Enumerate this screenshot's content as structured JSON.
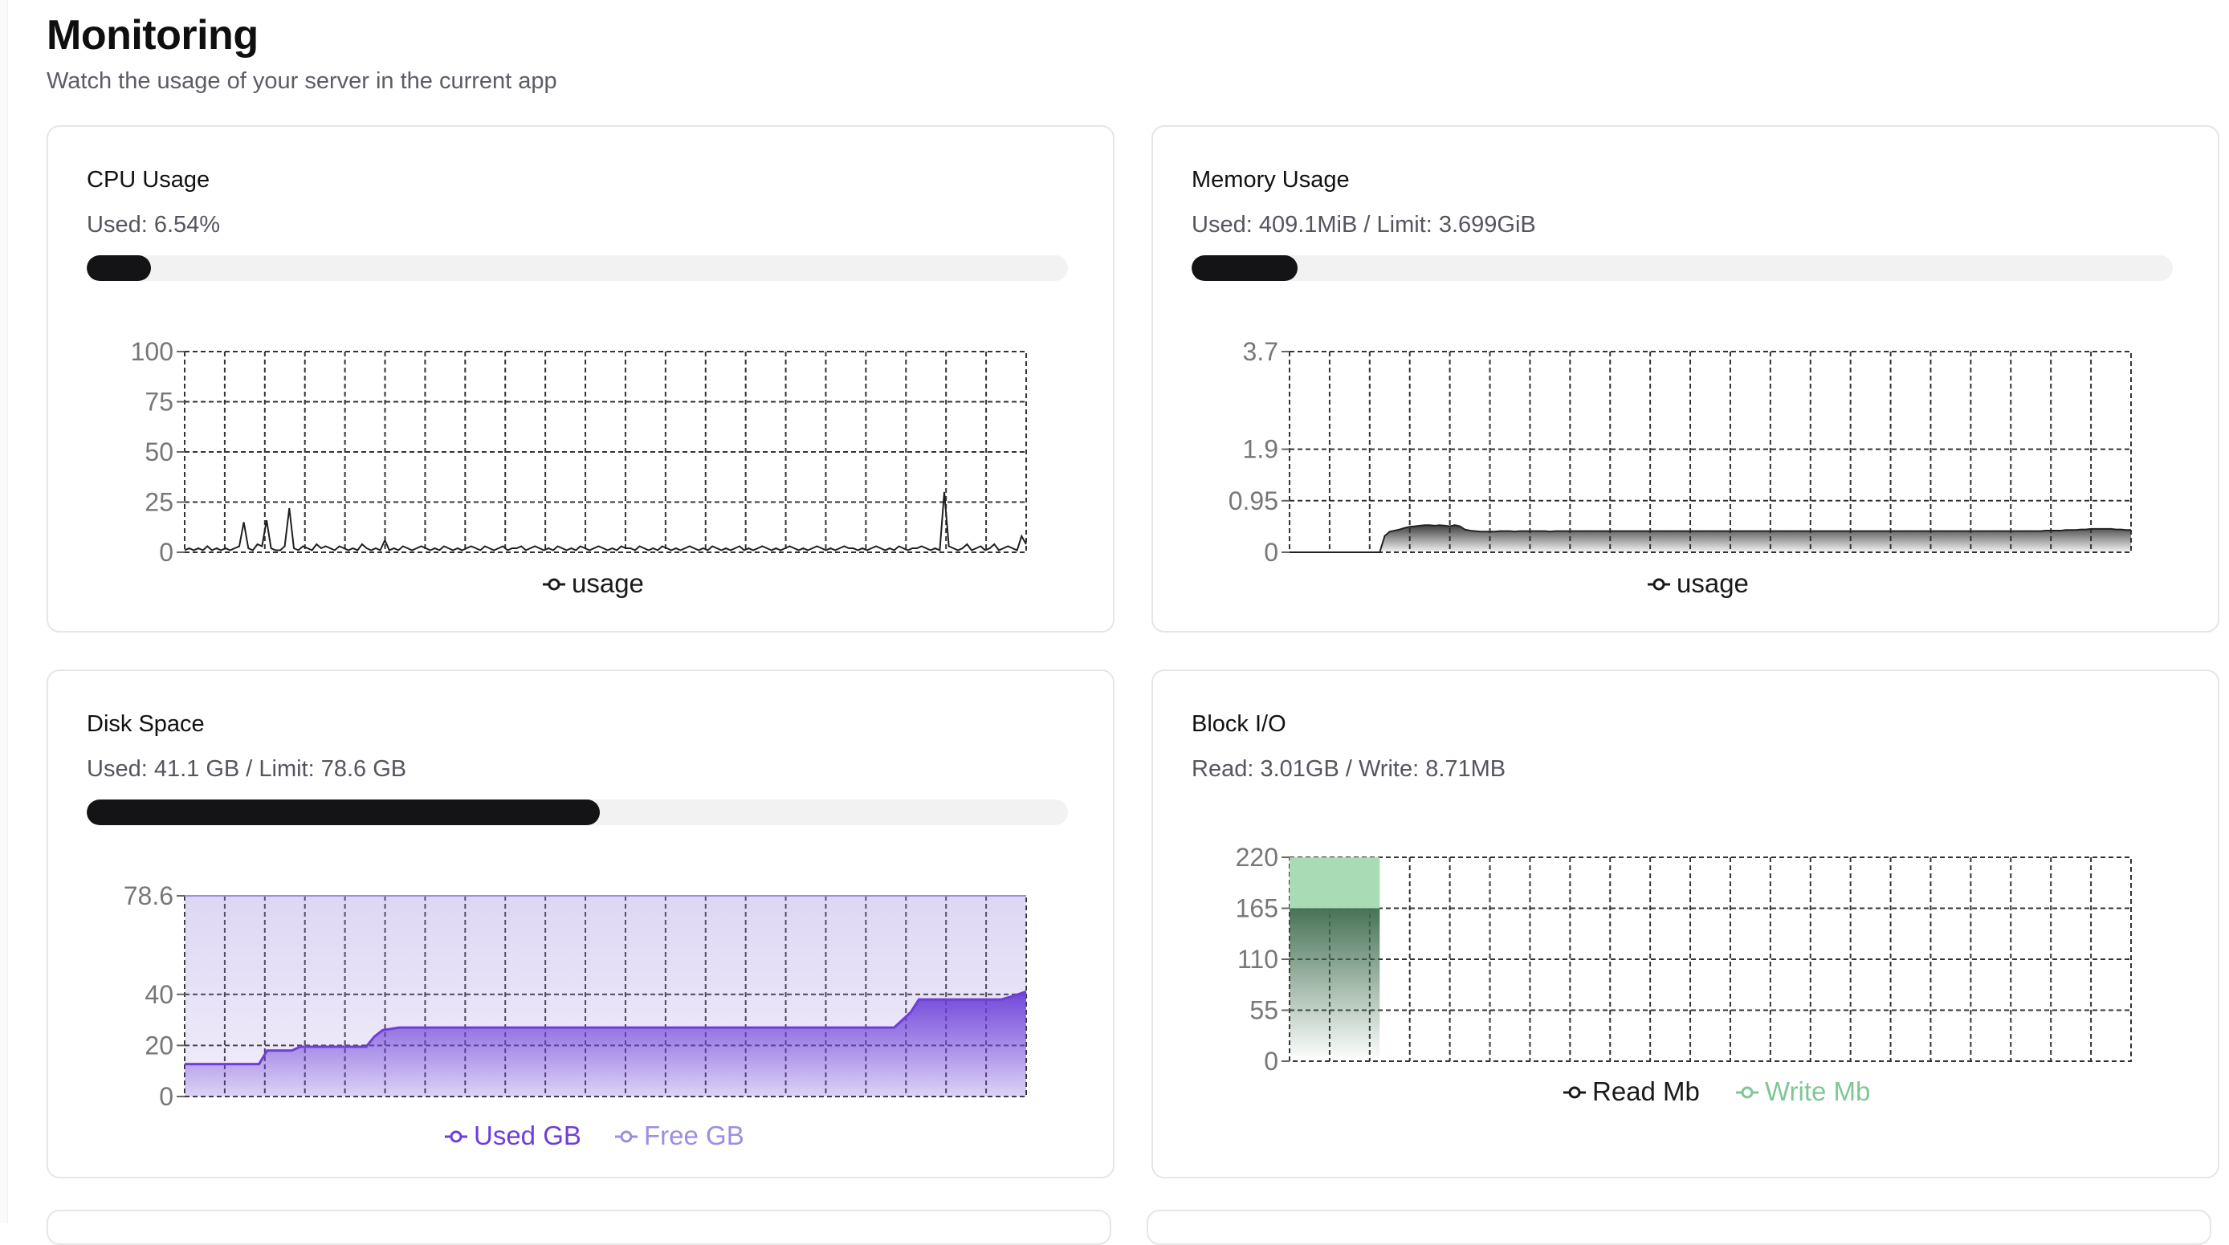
{
  "header": {
    "title": "Monitoring",
    "subtitle": "Watch the usage of your server in the current app"
  },
  "cards": {
    "cpu": {
      "title": "CPU Usage",
      "stat": "Used: 6.54%",
      "progress": 0.0654
    },
    "memory": {
      "title": "Memory Usage",
      "stat": "Used: 409.1MiB / Limit: 3.699GiB",
      "progress": 0.108
    },
    "disk": {
      "title": "Disk Space",
      "stat": "Used: 41.1 GB / Limit: 78.6 GB",
      "progress": 0.523
    },
    "blockio": {
      "title": "Block I/O",
      "stat": "Read: 3.01GB / Write: 8.71MB"
    }
  },
  "colors": {
    "line_dark": "#1f1f1f",
    "used_purple": "#6d3fd8",
    "free_purple": "#a08ce0",
    "write_green": "#7ec794",
    "read_dark": "#3a3a3a"
  },
  "chart_data": [
    {
      "id": "cpu",
      "type": "line",
      "ylim": [
        0,
        100
      ],
      "yticks": [
        "100",
        "75",
        "50",
        "25",
        "0"
      ],
      "ytick_values": [
        100,
        75,
        50,
        25,
        0
      ],
      "series": [
        {
          "name": "usage",
          "values": [
            1,
            2,
            1,
            2,
            1,
            3,
            1,
            2,
            1,
            2,
            1,
            2,
            3,
            15,
            2,
            1,
            4,
            3,
            16,
            2,
            1,
            1,
            3,
            22,
            2,
            1,
            3,
            2,
            1,
            4,
            2,
            3,
            2,
            1,
            3,
            2,
            1,
            2,
            1,
            4,
            2,
            1,
            2,
            1,
            6,
            1,
            2,
            1,
            3,
            2,
            1,
            2,
            3,
            2,
            1,
            2,
            1,
            3,
            2,
            1,
            2,
            1,
            2,
            3,
            2,
            1,
            3,
            2,
            1,
            2,
            3,
            1,
            2,
            2,
            3,
            1,
            2,
            3,
            2,
            1,
            2,
            1,
            3,
            2,
            1,
            2,
            1,
            3,
            2,
            1,
            2,
            3,
            2,
            1,
            2,
            1,
            3,
            2,
            2,
            1,
            3,
            2,
            1,
            2,
            1,
            3,
            2,
            1,
            2,
            1,
            2,
            3,
            2,
            1,
            2,
            1,
            3,
            2,
            1,
            2,
            1,
            2,
            3,
            1,
            2,
            1,
            2,
            3,
            2,
            1,
            2,
            1,
            2,
            3,
            2,
            1,
            2,
            1,
            2,
            3,
            2,
            1,
            2,
            1,
            2,
            3,
            2,
            2,
            1,
            2,
            1,
            2,
            3,
            2,
            1,
            2,
            1,
            3,
            2,
            1,
            2,
            2,
            3,
            2,
            1,
            2,
            1,
            30,
            3,
            2,
            1,
            2,
            4,
            1,
            2,
            3,
            1,
            2,
            4,
            1,
            2,
            3,
            2,
            1,
            8,
            4
          ]
        }
      ],
      "legend": [
        "usage"
      ]
    },
    {
      "id": "memory",
      "type": "area",
      "ylim": [
        0,
        3.7
      ],
      "yticks": [
        "3.7",
        "1.9",
        "0.95",
        "0"
      ],
      "ytick_values": [
        3.7,
        1.9,
        0.95,
        0
      ],
      "series": [
        {
          "name": "usage",
          "values": [
            0,
            0,
            0,
            0,
            0,
            0,
            0,
            0,
            0,
            0,
            0,
            0,
            0,
            0,
            0,
            0,
            0,
            0,
            0,
            0.3,
            0.38,
            0.4,
            0.42,
            0.45,
            0.47,
            0.48,
            0.49,
            0.5,
            0.5,
            0.49,
            0.5,
            0.49,
            0.48,
            0.5,
            0.48,
            0.42,
            0.4,
            0.39,
            0.38,
            0.38,
            0.38,
            0.38,
            0.39,
            0.39,
            0.39,
            0.38,
            0.39,
            0.39,
            0.39,
            0.39,
            0.39,
            0.39,
            0.38,
            0.39,
            0.39,
            0.39,
            0.39,
            0.39,
            0.39,
            0.39,
            0.39,
            0.39,
            0.39,
            0.39,
            0.39,
            0.39,
            0.39,
            0.39,
            0.39,
            0.39,
            0.39,
            0.39,
            0.39,
            0.39,
            0.39,
            0.39,
            0.39,
            0.39,
            0.39,
            0.39,
            0.39,
            0.39,
            0.39,
            0.39,
            0.39,
            0.39,
            0.39,
            0.39,
            0.39,
            0.39,
            0.39,
            0.39,
            0.39,
            0.39,
            0.39,
            0.39,
            0.39,
            0.39,
            0.39,
            0.39,
            0.39,
            0.39,
            0.39,
            0.39,
            0.39,
            0.39,
            0.39,
            0.39,
            0.39,
            0.39,
            0.39,
            0.39,
            0.39,
            0.39,
            0.39,
            0.39,
            0.39,
            0.39,
            0.39,
            0.39,
            0.39,
            0.39,
            0.39,
            0.39,
            0.39,
            0.39,
            0.39,
            0.39,
            0.39,
            0.39,
            0.39,
            0.39,
            0.39,
            0.39,
            0.39,
            0.39,
            0.39,
            0.39,
            0.39,
            0.39,
            0.39,
            0.39,
            0.39,
            0.39,
            0.39,
            0.39,
            0.39,
            0.39,
            0.39,
            0.39,
            0.39,
            0.4,
            0.4,
            0.4,
            0.4,
            0.41,
            0.41,
            0.41,
            0.42,
            0.42,
            0.43,
            0.43,
            0.43,
            0.43,
            0.43,
            0.42,
            0.42,
            0.41,
            0.41
          ]
        }
      ],
      "legend": [
        "usage"
      ]
    },
    {
      "id": "disk",
      "type": "area",
      "ylim": [
        0,
        78.6
      ],
      "yticks": [
        "78.6",
        "40",
        "20",
        "0"
      ],
      "ytick_values": [
        78.6,
        40,
        20,
        0
      ],
      "series": [
        {
          "name": "Used GB",
          "values": [
            12.7,
            12.7,
            12.7,
            12.7,
            12.7,
            12.7,
            12.7,
            12.7,
            12.7,
            12.7,
            18,
            18,
            18,
            18,
            19.5,
            19.5,
            19.5,
            19.5,
            19.5,
            19.5,
            19.5,
            19.5,
            19.5,
            23.5,
            26,
            26.5,
            27,
            27,
            27,
            27,
            27,
            27,
            27,
            27,
            27,
            27,
            27,
            27,
            27,
            27,
            27,
            27,
            27,
            27,
            27,
            27,
            27,
            27,
            27,
            27,
            27,
            27,
            27,
            27,
            27,
            27,
            27,
            27,
            27,
            27,
            27,
            27,
            27,
            27,
            27,
            27,
            27,
            27,
            27,
            27,
            27,
            27,
            27,
            27,
            27,
            27,
            27,
            27,
            27,
            27,
            27,
            27,
            27,
            27,
            27,
            27,
            27,
            30,
            33,
            38,
            38,
            38,
            38,
            38,
            38,
            38,
            38,
            38,
            38,
            38,
            39,
            40,
            41.1
          ]
        },
        {
          "name": "Free GB",
          "values": [
            65.9,
            65.9,
            65.9,
            65.9,
            65.9,
            65.9,
            65.9,
            65.9,
            65.9,
            65.9,
            60.6,
            60.6,
            60.6,
            60.6,
            59.1,
            59.1,
            59.1,
            59.1,
            59.1,
            59.1,
            59.1,
            59.1,
            59.1,
            55.1,
            52.6,
            52.1,
            51.6,
            51.6,
            51.6,
            51.6,
            51.6,
            51.6,
            51.6,
            51.6,
            51.6,
            51.6,
            51.6,
            51.6,
            51.6,
            51.6,
            51.6,
            51.6,
            51.6,
            51.6,
            51.6,
            51.6,
            51.6,
            51.6,
            51.6,
            51.6,
            51.6,
            51.6,
            51.6,
            51.6,
            51.6,
            51.6,
            51.6,
            51.6,
            51.6,
            51.6,
            51.6,
            51.6,
            51.6,
            51.6,
            51.6,
            51.6,
            51.6,
            51.6,
            51.6,
            51.6,
            51.6,
            51.6,
            51.6,
            51.6,
            51.6,
            51.6,
            51.6,
            51.6,
            51.6,
            51.6,
            51.6,
            51.6,
            51.6,
            51.6,
            51.6,
            51.6,
            51.6,
            48.6,
            45.6,
            40.6,
            40.6,
            40.6,
            40.6,
            40.6,
            40.6,
            40.6,
            40.6,
            40.6,
            40.6,
            40.6,
            39.6,
            38.6,
            37.5
          ]
        }
      ],
      "legend": [
        "Used GB",
        "Free GB"
      ]
    },
    {
      "id": "blockio",
      "type": "area",
      "ylim": [
        0,
        220
      ],
      "yticks": [
        "220",
        "165",
        "110",
        "55",
        "0"
      ],
      "ytick_values": [
        220,
        165,
        110,
        55,
        0
      ],
      "series": [
        {
          "name": "Read Mb",
          "values": [
            165,
            165,
            165,
            165,
            0
          ]
        },
        {
          "name": "Write Mb",
          "values": [
            220,
            220,
            220,
            220,
            0
          ]
        }
      ],
      "legend": [
        "Read Mb",
        "Write Mb"
      ]
    }
  ]
}
